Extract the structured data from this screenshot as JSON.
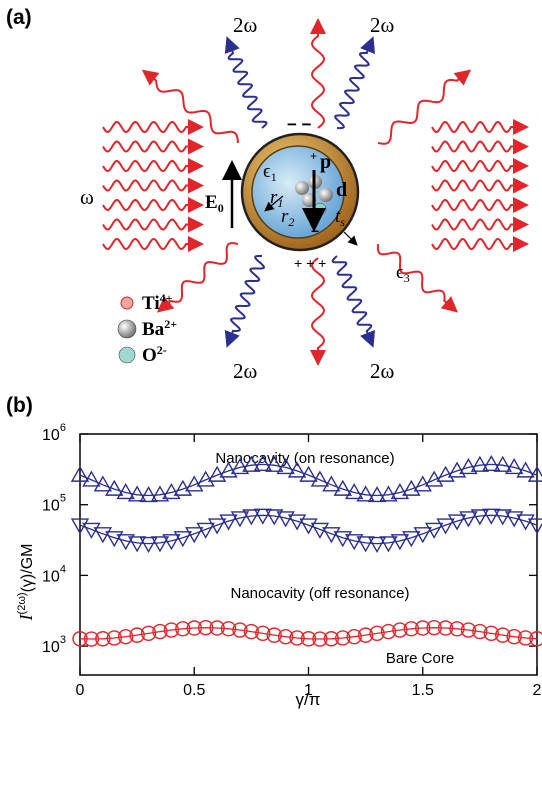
{
  "panel_a": {
    "label": "(a)",
    "harmonic_labels": [
      "2ω",
      "2ω",
      "2ω",
      "2ω"
    ],
    "fundamental_label": "ω",
    "field": {
      "text": "E",
      "sub": "0"
    },
    "eps1": {
      "text": "ϵ",
      "sub": "1"
    },
    "eps3": {
      "text": "ϵ",
      "sub": "3"
    },
    "dipole_p": "p",
    "dipole_d": "d",
    "r1": {
      "text": "r",
      "sub": "1"
    },
    "r2": {
      "text": "r",
      "sub": "2"
    },
    "ts": {
      "text": "t",
      "sub": "s"
    },
    "charge_top": "− −",
    "charge_plus": "+",
    "charge_minus": "−",
    "charge_bottom": "+ + +",
    "legend": [
      {
        "text": "Ti",
        "sup": "4+"
      },
      {
        "text": "Ba",
        "sup": "2+"
      },
      {
        "text": "O",
        "sup": "2-"
      }
    ]
  },
  "panel_b": {
    "label": "(b)"
  },
  "chart_data": {
    "type": "line",
    "yscale": "log",
    "ylabel": {
      "main": "I",
      "sup": "(2ω)",
      "rest": "(γ)/GM"
    },
    "xlabel": "γ/π",
    "annotations": [
      "Nanocavity (on resonance)",
      "Nanocavity (off resonance)",
      "Bare Core"
    ],
    "x": [
      0,
      0.05,
      0.1,
      0.15,
      0.2,
      0.25,
      0.3,
      0.35,
      0.4,
      0.45,
      0.5,
      0.55,
      0.6,
      0.65,
      0.7,
      0.75,
      0.8,
      0.85,
      0.9,
      0.95,
      1,
      1.05,
      1.1,
      1.15,
      1.2,
      1.25,
      1.3,
      1.35,
      1.4,
      1.45,
      1.5,
      1.55,
      1.6,
      1.65,
      1.7,
      1.75,
      1.8,
      1.85,
      1.9,
      1.95,
      2
    ],
    "series": [
      {
        "name": "Nanocavity (on resonance)",
        "color": "#2b2f8f",
        "marker": "triangle-up",
        "values": [
          262000,
          224000,
          191000,
          166000,
          149000,
          138000,
          135000,
          138000,
          149000,
          166000,
          191000,
          224000,
          262000,
          301000,
          337000,
          362000,
          372000,
          362000,
          337000,
          301000,
          262000,
          224000,
          191000,
          166000,
          149000,
          138000,
          135000,
          138000,
          149000,
          166000,
          191000,
          224000,
          262000,
          301000,
          337000,
          362000,
          372000,
          362000,
          337000,
          301000,
          262000
        ]
      },
      {
        "name": "Nanocavity (off resonance)",
        "color": "#2b2f8f",
        "marker": "triangle-down",
        "values": [
          51500,
          44700,
          38700,
          34000,
          30800,
          28800,
          28200,
          28800,
          30800,
          34000,
          38700,
          44700,
          51500,
          58600,
          64900,
          69200,
          70800,
          69200,
          64900,
          58600,
          51500,
          44700,
          38700,
          34000,
          30800,
          28800,
          28200,
          28800,
          30800,
          34000,
          38700,
          44700,
          51500,
          58600,
          64900,
          69200,
          70800,
          69200,
          64900,
          58600,
          51500
        ]
      },
      {
        "name": "Bare Core",
        "color": "#e0262b",
        "marker": "circle",
        "values": [
          1270,
          1259,
          1270,
          1303,
          1358,
          1429,
          1514,
          1603,
          1687,
          1757,
          1803,
          1820,
          1803,
          1757,
          1687,
          1603,
          1514,
          1429,
          1358,
          1303,
          1270,
          1259,
          1270,
          1303,
          1358,
          1429,
          1514,
          1603,
          1687,
          1757,
          1803,
          1820,
          1803,
          1757,
          1687,
          1603,
          1514,
          1429,
          1358,
          1303,
          1270
        ]
      }
    ],
    "xlim": [
      0,
      2
    ],
    "xticks": [
      0,
      0.5,
      1,
      1.5,
      2
    ],
    "ylim": [
      390,
      1000000
    ],
    "yticks": [
      {
        "value": 1000,
        "label": "10",
        "sup": "3"
      },
      {
        "value": 10000,
        "label": "10",
        "sup": "4"
      },
      {
        "value": 100000,
        "label": "10",
        "sup": "5"
      },
      {
        "value": 1000000,
        "label": "10",
        "sup": "6"
      }
    ]
  }
}
